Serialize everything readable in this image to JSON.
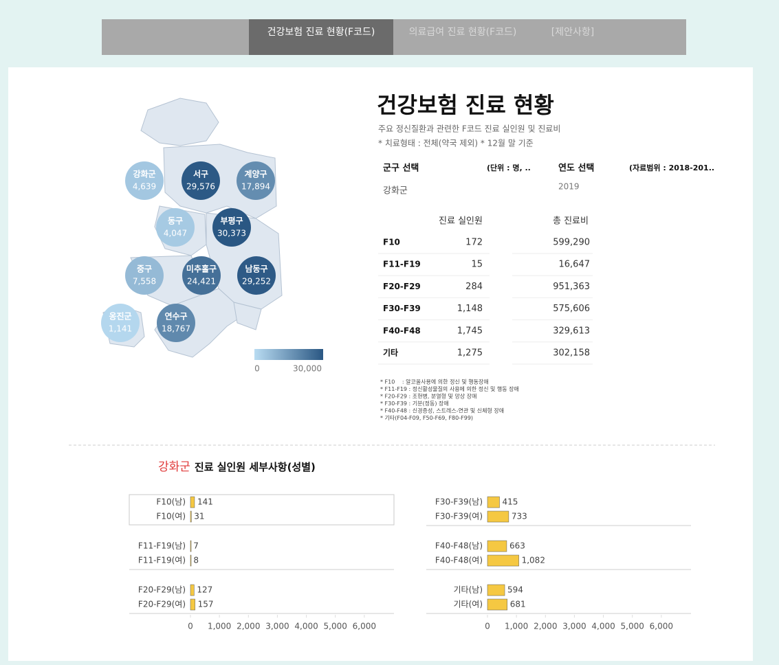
{
  "tabs": [
    "건강보험 진료 현황(F코드)",
    "의료급여 진료 현황(F코드)",
    "[제안사항]"
  ],
  "header": {
    "title": "건강보험 진료 현황",
    "subtitle": "주요 정신질환과 관련한 F코드 진료 실인원 및 진료비",
    "note": "* 치료형태 : 전체(약국 제외) * 12월 말 기준"
  },
  "filters": {
    "district_label": "군구 선택",
    "unit": "(단위 : 명, ..",
    "district": "강화군",
    "year_label": "연도 선택",
    "range": "(자료범위 : 2018-201..",
    "year": "2019"
  },
  "map": {
    "names": [
      "강화군",
      "서구",
      "계양구",
      "동구",
      "부평구",
      "중구",
      "미추홀구",
      "남동구",
      "옹진군",
      "연수구"
    ],
    "values": [
      4639,
      29576,
      17894,
      4047,
      30373,
      7558,
      24421,
      29252,
      1141,
      18767
    ],
    "value_labels": [
      "4,639",
      "29,576",
      "17,894",
      "4,047",
      "30,373",
      "7,558",
      "24,421",
      "29,252",
      "1,141",
      "18,767"
    ],
    "colors": [
      "#b9dcf2",
      "#2a5783"
    ],
    "legend_ticks": [
      0,
      {
        "value": 30000,
        "label": "30,000"
      }
    ]
  },
  "table": {
    "headers": [
      "진료 실인원",
      "총 진료비"
    ],
    "rows": [
      [
        "F10",
        "172",
        "599,290"
      ],
      [
        "F11-F19",
        "15",
        "16,647"
      ],
      [
        "F20-F29",
        "284",
        "951,363"
      ],
      [
        "F30-F39",
        "1,148",
        "575,606"
      ],
      [
        "F40-F48",
        "1,745",
        "329,613"
      ],
      [
        "기타",
        "1,275",
        "302,158"
      ]
    ]
  },
  "footnotes": [
    "* F10 　: 알코올사용에 의한 정신 및 행동장애",
    "* F11-F19 : 정신활성물질의 사용에 의한 정신 및 행동 장애",
    "* F20-F29 : 조현병, 분열형 및 망상 장애",
    "* F30-F39 : 기분(정동) 장애",
    "* F40-F48 : 신경증성, 스트레스-연관 및 신체형 장애",
    "* 기타(F04-F09, F50-F69, F80-F99)"
  ],
  "section": {
    "district": "강화군",
    "title": "진료 실인원 세부사항(성별)"
  },
  "chart_data": [
    {
      "type": "bar",
      "orientation": "horizontal",
      "color": "#f5c842",
      "categories": [
        "F10(남)",
        "F10(여)",
        "F11-F19(남)",
        "F11-F19(여)",
        "F20-F29(남)",
        "F20-F29(여)"
      ],
      "values": [
        141,
        31,
        7,
        8,
        127,
        157
      ],
      "xlim": [
        0,
        7000
      ],
      "xticks": [
        0,
        {
          "value": 1000,
          "label": "1,000"
        },
        {
          "value": 2000,
          "label": "2,000"
        },
        {
          "value": 3000,
          "label": "3,000"
        },
        {
          "value": 4000,
          "label": "4,000"
        },
        {
          "value": 5000,
          "label": "5,000"
        },
        {
          "value": 6000,
          "label": "6,000"
        }
      ]
    },
    {
      "type": "bar",
      "orientation": "horizontal",
      "color": "#f5c842",
      "categories": [
        "F30-F39(남)",
        "F30-F39(여)",
        "F40-F48(남)",
        "F40-F48(여)",
        "기타(남)",
        "기타(여)"
      ],
      "values": [
        415,
        733,
        663,
        1082,
        594,
        681
      ],
      "value_labels": [
        "415",
        "733",
        "663",
        "1,082",
        "594",
        "681"
      ],
      "xlim": [
        0,
        7000
      ],
      "xticks": [
        0,
        {
          "value": 1000,
          "label": "1,000"
        },
        {
          "value": 2000,
          "label": "2,000"
        },
        {
          "value": 3000,
          "label": "3,000"
        },
        {
          "value": 4000,
          "label": "4,000"
        },
        {
          "value": 5000,
          "label": "5,000"
        },
        {
          "value": 6000,
          "label": "6,000"
        }
      ]
    }
  ]
}
